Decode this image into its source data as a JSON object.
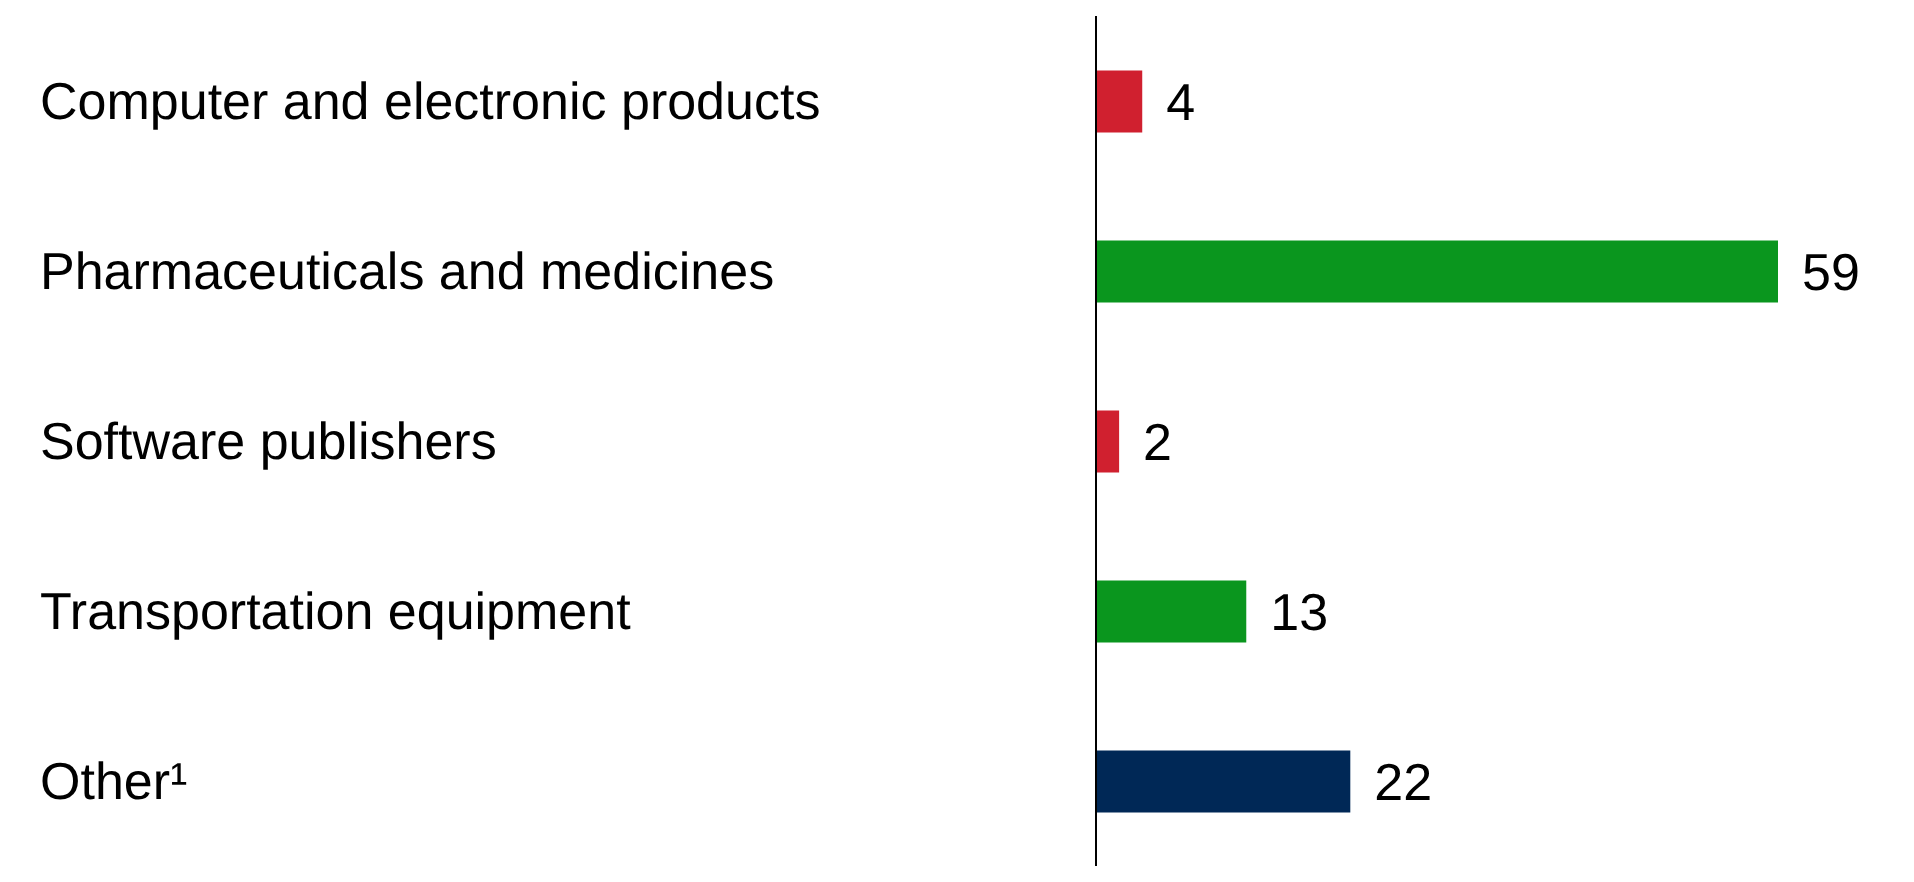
{
  "chart_data": {
    "type": "bar",
    "orientation": "horizontal",
    "categories": [
      "Computer and electronic products",
      "Pharmaceuticals and medicines",
      "Software publishers",
      "Transportation equipment",
      "Other¹"
    ],
    "values": [
      4,
      59,
      2,
      13,
      22
    ],
    "colors": [
      "#d0202f",
      "#0a961e",
      "#d0202f",
      "#0a961e",
      "#002856"
    ],
    "data_labels": true,
    "tick_labels": "y"
  }
}
